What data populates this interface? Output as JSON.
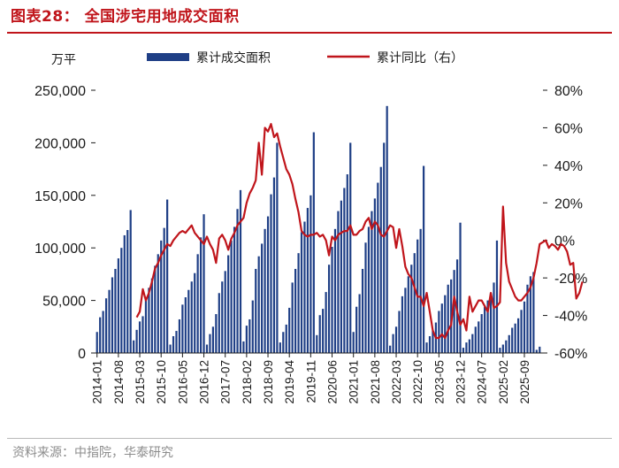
{
  "title": "图表28：  全国涉宅用地成交面积",
  "source": "资料来源：中指院，华泰研究",
  "chart_data": {
    "type": "bar+line",
    "left_unit": "万平",
    "legend": {
      "bar": "累计成交面积",
      "line": "累计同比（右）"
    },
    "colors": {
      "bar": "#1f3f86",
      "line": "#c0151b",
      "rule": "#c0151b"
    },
    "left_axis": {
      "min": 0,
      "max": 250000,
      "ticks": [
        "0",
        "50,000",
        "100,000",
        "150,000",
        "200,000",
        "250,000"
      ]
    },
    "right_axis": {
      "min": -60,
      "max": 80,
      "ticks": [
        "-60%",
        "-40%",
        "-20%",
        "0%",
        "20%",
        "40%",
        "60%",
        "80%"
      ]
    },
    "x_tick_labels": [
      "2014-01",
      "2014-08",
      "2015-03",
      "2015-10",
      "2016-05",
      "2016-12",
      "2017-07",
      "2018-02",
      "2018-09",
      "2019-04",
      "2019-11",
      "2020-06",
      "2021-01",
      "2021-08",
      "2022-03",
      "2022-10",
      "2023-05",
      "2023-12",
      "2024-07",
      "2025-02",
      "2025-09"
    ],
    "series": [
      {
        "name": "累计成交面积",
        "type": "bar",
        "years": [
          2014,
          2015,
          2016,
          2017,
          2018,
          2019,
          2020,
          2021,
          2022,
          2023,
          2024,
          2025
        ],
        "values_by_year": [
          [
            20000,
            34000,
            40000,
            52000,
            60000,
            72000,
            80000,
            90000,
            100000,
            112000,
            117000,
            136000
          ],
          [
            12000,
            22000,
            30000,
            35000,
            52000,
            62000,
            71000,
            83000,
            94000,
            107000,
            119000,
            146000
          ],
          [
            8000,
            16000,
            21000,
            32000,
            46000,
            53000,
            60000,
            68000,
            76000,
            94000,
            110000,
            132000
          ],
          [
            8000,
            18000,
            25000,
            37000,
            57000,
            68000,
            78000,
            93000,
            107000,
            120000,
            137000,
            155000
          ],
          [
            11000,
            26000,
            32000,
            50000,
            80000,
            92000,
            104000,
            118000,
            130000,
            151000,
            167000,
            200000
          ],
          [
            10000,
            20000,
            27000,
            43000,
            67000,
            80000,
            95000,
            115000,
            125000,
            138000,
            150000,
            210000
          ],
          [
            17000,
            36000,
            42000,
            58000,
            84000,
            101000,
            118000,
            135000,
            145000,
            157000,
            170000,
            200000
          ],
          [
            20000,
            44000,
            56000,
            80000,
            105000,
            120000,
            135000,
            147000,
            162000,
            177000,
            200000,
            235000
          ],
          [
            7000,
            18000,
            25000,
            40000,
            54000,
            62000,
            73000,
            84000,
            95000,
            108000,
            118000,
            178000
          ],
          [
            10000,
            16000,
            21000,
            29000,
            40000,
            47000,
            55000,
            65000,
            70000,
            79000,
            89000,
            124000
          ],
          [
            5000,
            10000,
            13000,
            18000,
            25000,
            30000,
            37000,
            44000,
            50000,
            57000,
            67000,
            107000
          ],
          [
            5000,
            8000,
            12000,
            17000,
            24000,
            28000,
            33000,
            41000,
            49000,
            65000,
            73000,
            77000
          ]
        ],
        "partial_2026": [
          3000,
          6000
        ]
      },
      {
        "name": "累计同比（右）",
        "type": "line",
        "start": "2015-02",
        "values": [
          -41,
          -38,
          -26,
          -32,
          -28,
          -22,
          -15,
          -12,
          -8,
          -5,
          -2,
          -3,
          0,
          2,
          4,
          5,
          4,
          6,
          8,
          4,
          2,
          0,
          -2,
          2,
          -2,
          -5,
          -12,
          1,
          3,
          0,
          -5,
          1,
          4,
          8,
          10,
          12,
          20,
          25,
          28,
          32,
          52,
          35,
          60,
          58,
          62,
          55,
          57,
          50,
          44,
          38,
          35,
          30,
          22,
          15,
          5,
          3,
          2,
          3,
          3,
          4,
          2,
          3,
          0,
          -8,
          2,
          0,
          3,
          4,
          5,
          5,
          8,
          3,
          3,
          5,
          6,
          10,
          12,
          6,
          10,
          8,
          3,
          2,
          5,
          8,
          7,
          -4,
          6,
          -3,
          -14,
          -18,
          -20,
          -25,
          -30,
          -30,
          -35,
          -28,
          -38,
          -48,
          -52,
          -52,
          -50,
          -52,
          -48,
          -45,
          -30,
          -38,
          -45,
          -42,
          -48,
          -30,
          -38,
          -35,
          -32,
          -32,
          -35,
          -38,
          -28,
          -36,
          -35,
          -33,
          18,
          -12,
          -22,
          -26,
          -30,
          -32,
          -32,
          -30,
          -28,
          -25,
          -20,
          -12,
          -2,
          -1,
          0,
          -4,
          -2,
          -3,
          -5,
          -2,
          -3,
          -6,
          -13,
          -12,
          -31,
          -28,
          -22
        ]
      }
    ]
  }
}
